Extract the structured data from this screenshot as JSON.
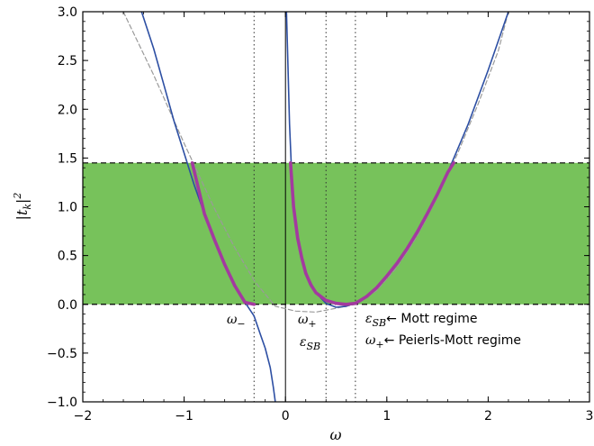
{
  "chart_data": {
    "type": "line",
    "xlabel": "ω",
    "ylabel": "|t_k|²",
    "xlim": [
      -2,
      3
    ],
    "ylim": [
      -1,
      3
    ],
    "xticks": [
      -2,
      -1,
      0,
      1,
      2,
      3
    ],
    "yticks": [
      -1.0,
      -0.5,
      0.0,
      0.5,
      1.0,
      1.5,
      2.0,
      2.5,
      3.0
    ],
    "xtick_labels": [
      "−2",
      "−1",
      "0",
      "1",
      "2",
      "3"
    ],
    "ytick_labels": [
      "−1.0",
      "−0.5",
      "0.0",
      "0.5",
      "1.0",
      "1.5",
      "2.0",
      "2.5",
      "3.0"
    ],
    "shaded_band": {
      "y": [
        0.0,
        1.45
      ],
      "color": "#77c25b"
    },
    "dashed_hlines": [
      0.0,
      1.45
    ],
    "dotted_vlines": [
      -0.31,
      0.4,
      0.69
    ],
    "solid_vline": 0.0,
    "colors": {
      "blue_curve": "#2d4fa3",
      "magenta_curve": "#a33a9f",
      "dashed_gray": "#9a9a9a",
      "band": "#77c25b"
    },
    "series": [
      {
        "style": "blue solid",
        "x": [
          -1.42,
          -1.3,
          -1.2,
          -1.1,
          -1.0,
          -0.9,
          -0.8,
          -0.7,
          -0.6,
          -0.5,
          -0.4,
          -0.31,
          -0.25,
          -0.2,
          -0.15,
          -0.12,
          -0.1
        ],
        "y": [
          3.0,
          2.62,
          2.25,
          1.88,
          1.55,
          1.22,
          0.93,
          0.66,
          0.41,
          0.19,
          0.02,
          -0.12,
          -0.3,
          -0.45,
          -0.65,
          -0.85,
          -1.0
        ]
      },
      {
        "style": "blue solid",
        "x": [
          0.01,
          0.02,
          0.04,
          0.06,
          0.08,
          0.12,
          0.16,
          0.2,
          0.3,
          0.4,
          0.5,
          0.6,
          0.7,
          0.8,
          0.9,
          1.0,
          1.2,
          1.4,
          1.6,
          1.8,
          2.0,
          2.2
        ],
        "y": [
          3.0,
          2.6,
          1.85,
          1.35,
          1.0,
          0.68,
          0.48,
          0.32,
          0.12,
          0.01,
          -0.03,
          -0.02,
          0.02,
          0.08,
          0.17,
          0.29,
          0.57,
          0.93,
          1.35,
          1.84,
          2.4,
          3.0
        ]
      },
      {
        "style": "gray dashed",
        "x": [
          -1.6,
          -1.3,
          -1.0,
          -0.7,
          -0.5,
          -0.3,
          -0.1,
          0.1,
          0.3,
          0.5,
          0.69
        ],
        "y": [
          3.0,
          2.35,
          1.65,
          0.98,
          0.58,
          0.23,
          -0.02,
          -0.07,
          -0.08,
          -0.04,
          0.0
        ]
      },
      {
        "style": "gray dashed",
        "x": [
          0.69,
          0.9,
          1.1,
          1.3,
          1.5,
          1.7,
          1.9,
          2.1,
          2.2
        ],
        "y": [
          0.0,
          0.14,
          0.38,
          0.7,
          1.1,
          1.55,
          2.05,
          2.6,
          3.0
        ]
      },
      {
        "style": "magenta thick",
        "x": [
          -0.92,
          -0.8,
          -0.7,
          -0.6,
          -0.5,
          -0.4,
          -0.31
        ],
        "y": [
          1.45,
          0.93,
          0.66,
          0.41,
          0.19,
          0.02,
          0.0
        ]
      },
      {
        "style": "magenta thick",
        "x": [
          0.05,
          0.08,
          0.12,
          0.16,
          0.2,
          0.25,
          0.3,
          0.4,
          0.5,
          0.6,
          0.69
        ],
        "y": [
          1.45,
          1.0,
          0.68,
          0.48,
          0.32,
          0.2,
          0.12,
          0.04,
          0.01,
          0.0,
          0.01
        ]
      },
      {
        "style": "magenta thick",
        "x": [
          0.69,
          0.8,
          0.9,
          1.0,
          1.1,
          1.2,
          1.3,
          1.4,
          1.5,
          1.6,
          1.66
        ],
        "y": [
          0.01,
          0.08,
          0.17,
          0.29,
          0.42,
          0.57,
          0.74,
          0.93,
          1.13,
          1.35,
          1.45
        ]
      }
    ],
    "annotations": {
      "omega_minus": {
        "base": "ω",
        "sub": "−",
        "x": -0.31,
        "y": 0.0
      },
      "omega_plus_axis": {
        "base": "ω",
        "sub": "+",
        "x": 0.12,
        "y": 0.0
      },
      "eps_sb_axis": {
        "base": "ε",
        "sub": "SB",
        "x": 0.4,
        "y": 0.0
      },
      "mott_line": {
        "base": "ε",
        "sub": "SB",
        "text": "← Mott regime"
      },
      "peierls_line": {
        "base": "ω",
        "sub": "+",
        "text": "← Peierls-Mott regime"
      }
    }
  }
}
